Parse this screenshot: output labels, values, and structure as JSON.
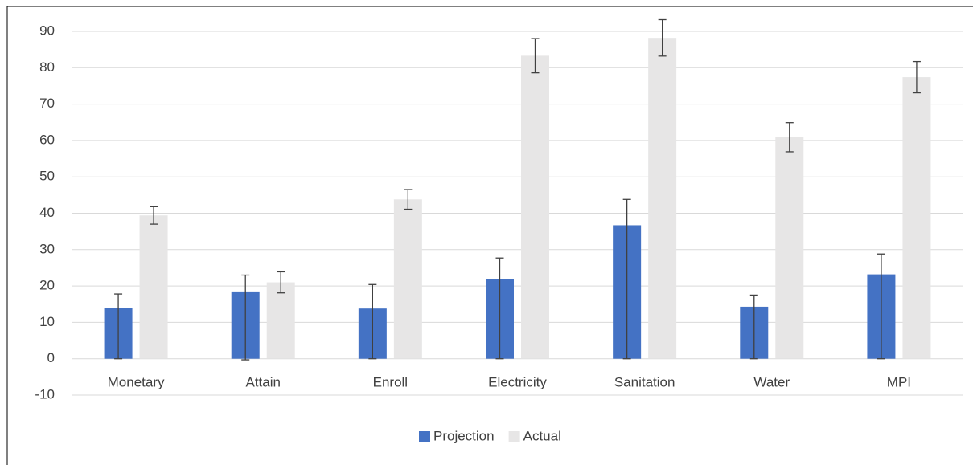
{
  "chart_data": {
    "type": "bar",
    "categories": [
      "Monetary",
      "Attain",
      "Enroll",
      "Electricity",
      "Sanitation",
      "Water",
      "MPI"
    ],
    "series": [
      {
        "name": "Projection",
        "color": "#4472c4",
        "values": [
          14,
          18.5,
          13.8,
          21.8,
          36.7,
          14.3,
          23.2
        ],
        "errors_plus": [
          3.8,
          4.5,
          6.6,
          5.9,
          7.1,
          3.2,
          5.6
        ],
        "errors_minus": [
          14,
          18.8,
          13.8,
          21.8,
          36.7,
          14.3,
          23.2
        ]
      },
      {
        "name": "Actual",
        "color": "#e7e6e6",
        "values": [
          39.4,
          21,
          43.8,
          83.3,
          88.2,
          60.9,
          77.4
        ],
        "errors_plus": [
          2.4,
          2.9,
          2.7,
          4.7,
          5,
          4,
          4.3
        ],
        "errors_minus": [
          2.4,
          2.9,
          2.7,
          4.7,
          5,
          4,
          4.3
        ]
      }
    ],
    "ylim": [
      -10,
      90
    ],
    "yticks": [
      -10,
      0,
      10,
      20,
      30,
      40,
      50,
      60,
      70,
      80,
      90
    ],
    "grid": true,
    "legend": "bottom"
  }
}
